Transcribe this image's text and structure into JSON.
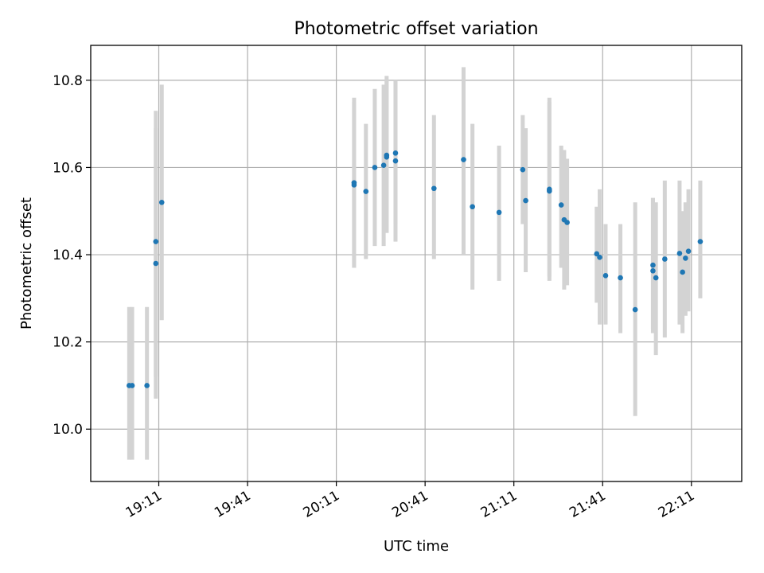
{
  "chart_data": {
    "type": "scatter",
    "title": "Photometric offset variation",
    "xlabel": "UTC time",
    "ylabel": "Photometric offset",
    "x_tick_labels": [
      "19:11",
      "19:41",
      "20:11",
      "20:41",
      "21:11",
      "21:41",
      "22:11"
    ],
    "y_tick_labels": [
      "10.0",
      "10.2",
      "10.4",
      "10.6",
      "10.8"
    ],
    "xlim": [
      "18:48",
      "22:28"
    ],
    "ylim": [
      9.88,
      10.88
    ],
    "grid": true,
    "colors": {
      "point": "#1f77b4",
      "errorbar": "#d3d3d3"
    },
    "points": [
      {
        "x": "19:01",
        "y": 10.1,
        "lo": 9.93,
        "hi": 10.28
      },
      {
        "x": "19:02",
        "y": 10.1,
        "lo": 9.93,
        "hi": 10.28
      },
      {
        "x": "19:07",
        "y": 10.1,
        "lo": 9.93,
        "hi": 10.28
      },
      {
        "x": "19:10",
        "y": 10.38,
        "lo": 10.07,
        "hi": 10.69
      },
      {
        "x": "19:10",
        "y": 10.43,
        "lo": 10.12,
        "hi": 10.73
      },
      {
        "x": "19:12",
        "y": 10.52,
        "lo": 10.25,
        "hi": 10.79
      },
      {
        "x": "20:17",
        "y": 10.565,
        "lo": 10.37,
        "hi": 10.76
      },
      {
        "x": "20:17",
        "y": 10.56,
        "lo": 10.37,
        "hi": 10.75
      },
      {
        "x": "20:21",
        "y": 10.545,
        "lo": 10.39,
        "hi": 10.7
      },
      {
        "x": "20:24",
        "y": 10.6,
        "lo": 10.42,
        "hi": 10.78
      },
      {
        "x": "20:27",
        "y": 10.605,
        "lo": 10.42,
        "hi": 10.79
      },
      {
        "x": "20:28",
        "y": 10.628,
        "lo": 10.45,
        "hi": 10.81
      },
      {
        "x": "20:28",
        "y": 10.624,
        "lo": 10.45,
        "hi": 10.8
      },
      {
        "x": "20:31",
        "y": 10.615,
        "lo": 10.43,
        "hi": 10.8
      },
      {
        "x": "20:31",
        "y": 10.633,
        "lo": 10.47,
        "hi": 10.8
      },
      {
        "x": "20:44",
        "y": 10.552,
        "lo": 10.39,
        "hi": 10.72
      },
      {
        "x": "20:54",
        "y": 10.618,
        "lo": 10.4,
        "hi": 10.83
      },
      {
        "x": "20:57",
        "y": 10.51,
        "lo": 10.32,
        "hi": 10.7
      },
      {
        "x": "21:06",
        "y": 10.497,
        "lo": 10.34,
        "hi": 10.65
      },
      {
        "x": "21:14",
        "y": 10.595,
        "lo": 10.47,
        "hi": 10.72
      },
      {
        "x": "21:15",
        "y": 10.524,
        "lo": 10.36,
        "hi": 10.69
      },
      {
        "x": "21:23",
        "y": 10.55,
        "lo": 10.35,
        "hi": 10.75
      },
      {
        "x": "21:23",
        "y": 10.546,
        "lo": 10.34,
        "hi": 10.76
      },
      {
        "x": "21:27",
        "y": 10.514,
        "lo": 10.37,
        "hi": 10.65
      },
      {
        "x": "21:28",
        "y": 10.48,
        "lo": 10.32,
        "hi": 10.64
      },
      {
        "x": "21:29",
        "y": 10.474,
        "lo": 10.33,
        "hi": 10.62
      },
      {
        "x": "21:39",
        "y": 10.402,
        "lo": 10.29,
        "hi": 10.51
      },
      {
        "x": "21:40",
        "y": 10.394,
        "lo": 10.24,
        "hi": 10.55
      },
      {
        "x": "21:42",
        "y": 10.352,
        "lo": 10.24,
        "hi": 10.47
      },
      {
        "x": "21:47",
        "y": 10.347,
        "lo": 10.22,
        "hi": 10.47
      },
      {
        "x": "21:52",
        "y": 10.274,
        "lo": 10.03,
        "hi": 10.52
      },
      {
        "x": "21:58",
        "y": 10.376,
        "lo": 10.22,
        "hi": 10.53
      },
      {
        "x": "21:58",
        "y": 10.363,
        "lo": 10.23,
        "hi": 10.53
      },
      {
        "x": "21:59",
        "y": 10.347,
        "lo": 10.17,
        "hi": 10.52
      },
      {
        "x": "22:02",
        "y": 10.39,
        "lo": 10.21,
        "hi": 10.57
      },
      {
        "x": "22:07",
        "y": 10.403,
        "lo": 10.24,
        "hi": 10.57
      },
      {
        "x": "22:08",
        "y": 10.36,
        "lo": 10.22,
        "hi": 10.5
      },
      {
        "x": "22:09",
        "y": 10.392,
        "lo": 10.26,
        "hi": 10.52
      },
      {
        "x": "22:10",
        "y": 10.408,
        "lo": 10.27,
        "hi": 10.55
      },
      {
        "x": "22:14",
        "y": 10.43,
        "lo": 10.3,
        "hi": 10.57
      }
    ]
  }
}
